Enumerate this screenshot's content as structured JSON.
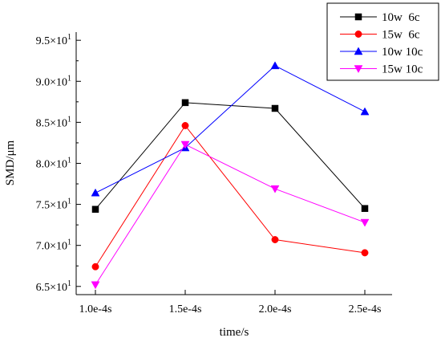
{
  "chart_data": {
    "type": "line",
    "xlabel": "time/s",
    "ylabel": "SMD/μm",
    "categories": [
      "1.0e-4s",
      "1.5e-4s",
      "2.0e-4s",
      "2.5e-4s"
    ],
    "ylim": [
      64,
      96
    ],
    "yticks": [
      {
        "value": 65,
        "mantissa": "6.5",
        "base": "×10",
        "exp": "1"
      },
      {
        "value": 70,
        "mantissa": "7.0",
        "base": "×10",
        "exp": "1"
      },
      {
        "value": 75,
        "mantissa": "7.5",
        "base": "×10",
        "exp": "1"
      },
      {
        "value": 80,
        "mantissa": "8.0",
        "base": "×10",
        "exp": "1"
      },
      {
        "value": 85,
        "mantissa": "8.5",
        "base": "×10",
        "exp": "1"
      },
      {
        "value": 90,
        "mantissa": "9.0",
        "base": "×10",
        "exp": "1"
      },
      {
        "value": 95,
        "mantissa": "9.5",
        "base": "×10",
        "exp": "1"
      }
    ],
    "grid": false,
    "legend_position": "top-right",
    "series": [
      {
        "name": "10w  6c",
        "color": "#000000",
        "marker": "square",
        "values": [
          74.4,
          87.4,
          86.7,
          74.5
        ]
      },
      {
        "name": "15w  6c",
        "color": "#ff0000",
        "marker": "circle",
        "values": [
          67.4,
          84.6,
          70.7,
          69.1
        ]
      },
      {
        "name": "10w 10c",
        "color": "#0000ff",
        "marker": "triangle-up",
        "values": [
          76.4,
          81.9,
          91.9,
          86.3
        ]
      },
      {
        "name": "15w 10c",
        "color": "#ff00ff",
        "marker": "triangle-down",
        "values": [
          65.2,
          82.3,
          76.9,
          72.8
        ]
      }
    ]
  }
}
